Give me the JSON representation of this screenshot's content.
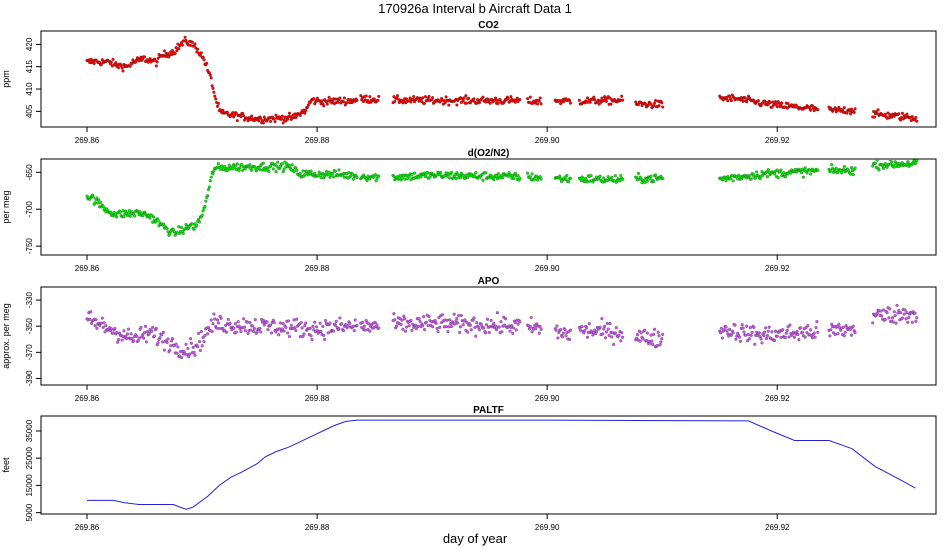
{
  "figure": {
    "title": "170926a   Interval b Aircraft Data 1",
    "xlabel": "day of year"
  },
  "chart_data": [
    {
      "type": "scatter",
      "title": "CO2",
      "ylabel": "ppm",
      "xlim": [
        269.856,
        269.9338
      ],
      "ylim": [
        401.5,
        423
      ],
      "xticks": [
        "269.86",
        "269.88",
        "269.90",
        "269.92"
      ],
      "yticks": [
        "405",
        "410",
        "415",
        "420"
      ],
      "series": [
        {
          "color": "#ff0000",
          "segments": [
            [
              269.86,
              269.8835
            ],
            [
              269.8838,
              269.8854
            ],
            [
              269.8866,
              269.8977
            ],
            [
              269.8983,
              269.8995
            ],
            [
              269.9007,
              269.9021
            ],
            [
              269.9028,
              269.9066
            ],
            [
              269.9077,
              269.9101
            ],
            [
              269.915,
              269.9236
            ],
            [
              269.9245,
              269.9268
            ],
            [
              269.9283,
              269.9322
            ]
          ],
          "knots": [
            [
              269.86,
              416
            ],
            [
              269.8605,
              416.2
            ],
            [
              269.862,
              416
            ],
            [
              269.8625,
              415.4
            ],
            [
              269.8635,
              415
            ],
            [
              269.864,
              416
            ],
            [
              269.865,
              416.8
            ],
            [
              269.866,
              416
            ],
            [
              269.8665,
              417.5
            ],
            [
              269.8675,
              418.4
            ],
            [
              269.8685,
              420.7
            ],
            [
              269.869,
              420.3
            ],
            [
              269.8695,
              419.3
            ],
            [
              269.8702,
              416.5
            ],
            [
              269.8708,
              412
            ],
            [
              269.8712,
              407.5
            ],
            [
              269.8716,
              404.6
            ],
            [
              269.873,
              404
            ],
            [
              269.875,
              403.3
            ],
            [
              269.878,
              403.6
            ],
            [
              269.8785,
              404.5
            ],
            [
              269.879,
              405.2
            ],
            [
              269.8795,
              407.5
            ],
            [
              269.8805,
              407.2
            ],
            [
              269.883,
              407.4
            ],
            [
              269.8835,
              407.6
            ],
            [
              269.884,
              407.8
            ],
            [
              269.8855,
              407.7
            ],
            [
              269.8865,
              407.5
            ],
            [
              269.8975,
              407.4
            ],
            [
              269.898,
              407.2
            ],
            [
              269.8995,
              407.3
            ],
            [
              269.9005,
              407.4
            ],
            [
              269.902,
              407.3
            ],
            [
              269.903,
              407.3
            ],
            [
              269.9066,
              407.5
            ],
            [
              269.9075,
              406.7
            ],
            [
              269.91,
              406.5
            ],
            [
              269.915,
              408
            ],
            [
              269.9165,
              407.8
            ],
            [
              269.9195,
              406.5
            ],
            [
              269.9235,
              405.5
            ],
            [
              269.9245,
              405.2
            ],
            [
              269.927,
              405.3
            ],
            [
              269.928,
              404.5
            ],
            [
              269.9322,
              403.5
            ]
          ],
          "noise": 0.6
        }
      ]
    },
    {
      "type": "scatter",
      "title": "d(O2/N2)",
      "ylabel": "per meg",
      "xlim": [
        269.856,
        269.9338
      ],
      "ylim": [
        -762,
        -632
      ],
      "xticks": [
        "269.86",
        "269.88",
        "269.90",
        "269.92"
      ],
      "yticks": [
        "-750",
        "-700",
        "-650"
      ],
      "series": [
        {
          "color": "#00ee00",
          "segments": [
            [
              269.86,
              269.8835
            ],
            [
              269.8838,
              269.8854
            ],
            [
              269.8866,
              269.8977
            ],
            [
              269.8983,
              269.8995
            ],
            [
              269.9007,
              269.9021
            ],
            [
              269.9028,
              269.9066
            ],
            [
              269.9077,
              269.9101
            ],
            [
              269.915,
              269.9236
            ],
            [
              269.9245,
              269.9268
            ],
            [
              269.9283,
              269.9322
            ]
          ],
          "knots": [
            [
              269.86,
              -683
            ],
            [
              269.8605,
              -685
            ],
            [
              269.8615,
              -699
            ],
            [
              269.8625,
              -707
            ],
            [
              269.8645,
              -705
            ],
            [
              269.8655,
              -709
            ],
            [
              269.8665,
              -722
            ],
            [
              269.8675,
              -733
            ],
            [
              269.8685,
              -727
            ],
            [
              269.869,
              -722
            ],
            [
              269.8695,
              -723
            ],
            [
              269.87,
              -708
            ],
            [
              269.8705,
              -680
            ],
            [
              269.871,
              -645
            ],
            [
              269.8725,
              -643
            ],
            [
              269.8775,
              -642
            ],
            [
              269.8785,
              -652
            ],
            [
              269.882,
              -653
            ],
            [
              269.8835,
              -655
            ],
            [
              269.886,
              -657
            ],
            [
              269.89,
              -654
            ],
            [
              269.8975,
              -656
            ],
            [
              269.8995,
              -657
            ],
            [
              269.9005,
              -658
            ],
            [
              269.902,
              -659
            ],
            [
              269.903,
              -659
            ],
            [
              269.9066,
              -660
            ],
            [
              269.9075,
              -659
            ],
            [
              269.91,
              -658
            ],
            [
              269.915,
              -659
            ],
            [
              269.919,
              -652
            ],
            [
              269.9236,
              -648
            ],
            [
              269.9245,
              -648
            ],
            [
              269.9268,
              -647
            ],
            [
              269.9283,
              -640
            ],
            [
              269.9322,
              -638
            ]
          ],
          "noise": 4
        }
      ]
    },
    {
      "type": "scatter",
      "title": "APO",
      "ylabel": "approx. per meg",
      "xlim": [
        269.856,
        269.9338
      ],
      "ylim": [
        -395,
        -320
      ],
      "xticks": [
        "269.86",
        "269.88",
        "269.90",
        "269.92"
      ],
      "yticks": [
        "-390",
        "-370",
        "-350",
        "-330"
      ],
      "series": [
        {
          "color": "#cc55ee",
          "segments": [
            [
              269.86,
              269.8835
            ],
            [
              269.8838,
              269.8854
            ],
            [
              269.8866,
              269.8977
            ],
            [
              269.8983,
              269.8995
            ],
            [
              269.9007,
              269.9021
            ],
            [
              269.9028,
              269.9066
            ],
            [
              269.9077,
              269.9101
            ],
            [
              269.915,
              269.9236
            ],
            [
              269.9245,
              269.9268
            ],
            [
              269.9283,
              269.9322
            ]
          ],
          "knots": [
            [
              269.86,
              -345
            ],
            [
              269.862,
              -352
            ],
            [
              269.864,
              -360
            ],
            [
              269.8655,
              -355
            ],
            [
              269.867,
              -362
            ],
            [
              269.8685,
              -368
            ],
            [
              269.8695,
              -365
            ],
            [
              269.871,
              -348
            ],
            [
              269.875,
              -350
            ],
            [
              269.88,
              -352
            ],
            [
              269.883,
              -350
            ],
            [
              269.8854,
              -350
            ],
            [
              269.8866,
              -349
            ],
            [
              269.8905,
              -348
            ],
            [
              269.8977,
              -350
            ],
            [
              269.8995,
              -352
            ],
            [
              269.9007,
              -354
            ],
            [
              269.9021,
              -356
            ],
            [
              269.9028,
              -353
            ],
            [
              269.9066,
              -355
            ],
            [
              269.9077,
              -358
            ],
            [
              269.9101,
              -360
            ],
            [
              269.915,
              -352
            ],
            [
              269.9185,
              -357
            ],
            [
              269.9236,
              -354
            ],
            [
              269.9245,
              -354
            ],
            [
              269.9268,
              -352
            ],
            [
              269.9283,
              -342
            ],
            [
              269.9322,
              -340
            ]
          ],
          "noise": 5
        }
      ]
    },
    {
      "type": "line",
      "title": "PALTF",
      "ylabel": "feet",
      "xlim": [
        269.856,
        269.9338
      ],
      "ylim": [
        4500,
        40500
      ],
      "xticks": [
        "269.86",
        "269.88",
        "269.90",
        "269.92"
      ],
      "yticks": [
        "5000",
        "15000",
        "25000",
        "35000"
      ],
      "series": [
        {
          "color": "#2222dd",
          "x": [
            269.86,
            269.8623,
            269.8632,
            269.8645,
            269.8665,
            269.8675,
            269.8686,
            269.8692,
            269.8705,
            269.8715,
            269.8725,
            269.8735,
            269.8748,
            269.8755,
            269.8765,
            269.8775,
            269.8785,
            269.8795,
            269.8805,
            269.8815,
            269.8825,
            269.8835,
            269.9,
            269.9175,
            269.9195,
            269.9215,
            269.9245,
            269.9265,
            269.9285,
            269.9305,
            269.932
          ],
          "y": [
            9500,
            9500,
            8700,
            8000,
            8000,
            8000,
            6200,
            7000,
            11000,
            15000,
            18000,
            20000,
            23000,
            25500,
            27500,
            29000,
            31000,
            33000,
            35000,
            37000,
            38500,
            39000,
            39000,
            38700,
            35000,
            31500,
            31500,
            28500,
            22000,
            17500,
            14000
          ]
        }
      ]
    }
  ]
}
